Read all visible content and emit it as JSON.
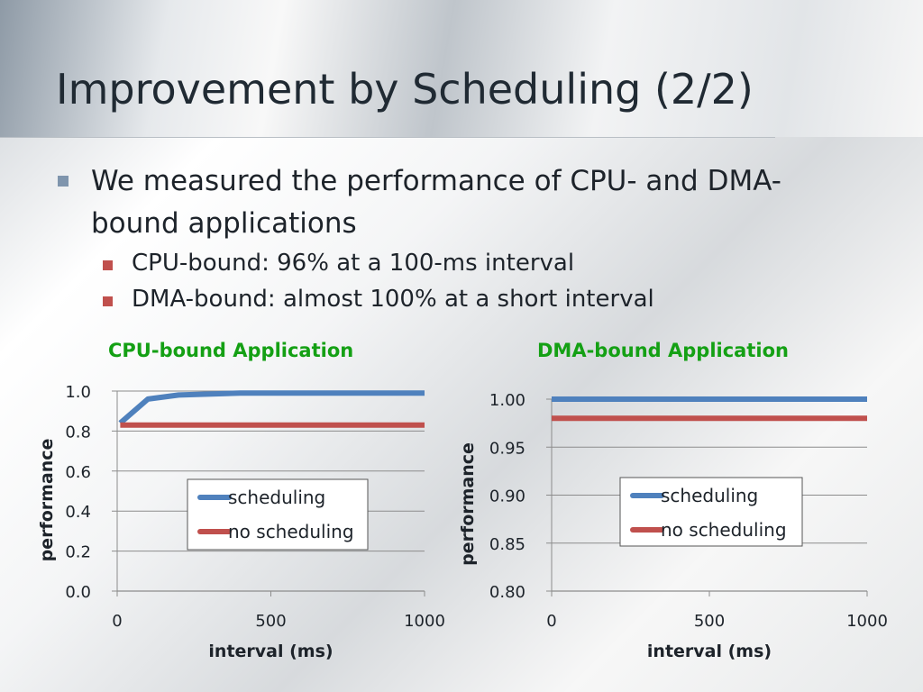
{
  "slide": {
    "title": "Improvement by Scheduling (2/2)",
    "bullet": "We measured the performance of CPU- and DMA-bound applications",
    "sub_bullets": [
      "CPU-bound: 96% at a 100-ms interval",
      "DMA-bound: almost 100% at a short interval"
    ]
  },
  "colors": {
    "scheduling": "#4f81bd",
    "no_scheduling": "#c0504d",
    "chart_title": "#14a014",
    "grid": "#8c8c8c"
  },
  "chart_data": [
    {
      "type": "line",
      "title": "CPU-bound Application",
      "xlabel": "interval (ms)",
      "ylabel": "performance",
      "xlim": [
        0,
        1000
      ],
      "ylim": [
        0.0,
        1.0
      ],
      "x_ticks": [
        0,
        500,
        1000
      ],
      "x_tick_labels": [
        "0",
        "500",
        "1000"
      ],
      "y_ticks": [
        0.0,
        0.2,
        0.4,
        0.6,
        0.8,
        1.0
      ],
      "y_tick_labels": [
        "0.0",
        "0.2",
        "0.4",
        "0.6",
        "0.8",
        "1.0"
      ],
      "grid": true,
      "legend_position": "center",
      "series": [
        {
          "name": "scheduling",
          "x": [
            10,
            100,
            200,
            400,
            1000
          ],
          "y": [
            0.84,
            0.96,
            0.98,
            0.99,
            0.99
          ]
        },
        {
          "name": "no scheduling",
          "x": [
            10,
            1000
          ],
          "y": [
            0.83,
            0.83
          ]
        }
      ]
    },
    {
      "type": "line",
      "title": "DMA-bound Application",
      "xlabel": "interval (ms)",
      "ylabel": "performance",
      "xlim": [
        0,
        1000
      ],
      "ylim": [
        0.8,
        1.0
      ],
      "x_ticks": [
        0,
        500,
        1000
      ],
      "x_tick_labels": [
        "0",
        "500",
        "1000"
      ],
      "y_ticks": [
        0.8,
        0.85,
        0.9,
        0.95,
        1.0
      ],
      "y_tick_labels": [
        "0.80",
        "0.85",
        "0.90",
        "0.95",
        "1.00"
      ],
      "grid": true,
      "legend_position": "center-right",
      "series": [
        {
          "name": "scheduling",
          "x": [
            0,
            1000
          ],
          "y": [
            1.0,
            1.0
          ]
        },
        {
          "name": "no scheduling",
          "x": [
            0,
            1000
          ],
          "y": [
            0.98,
            0.98
          ]
        }
      ]
    }
  ]
}
